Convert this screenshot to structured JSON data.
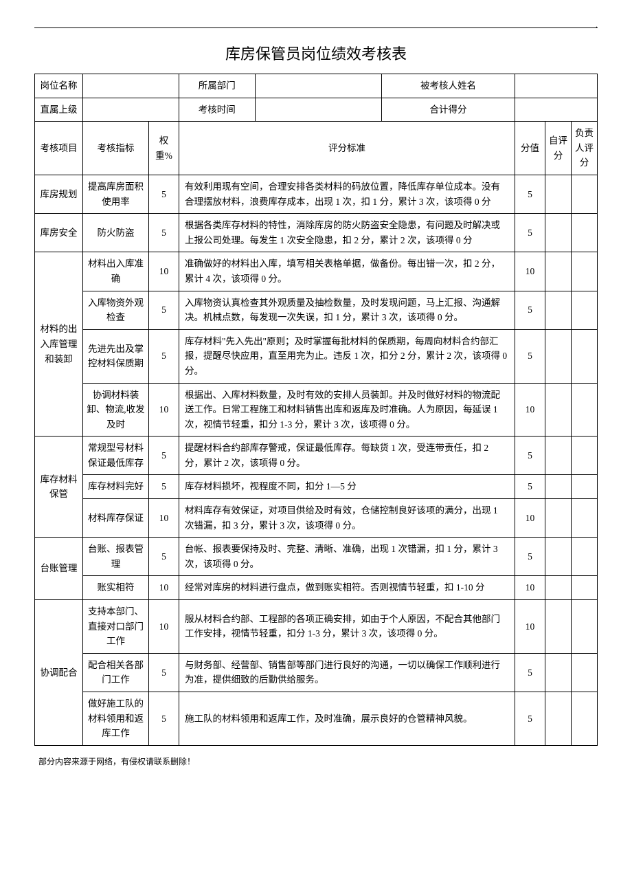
{
  "title": "库房保管员岗位绩效考核表",
  "info": {
    "labels": {
      "position": "岗位名称",
      "department": "所属部门",
      "assessee": "被考核人姓名",
      "supervisor": "直属上级",
      "period": "考核时间",
      "total": "合计得分"
    },
    "values": {
      "position": "",
      "department": "",
      "assessee": "",
      "supervisor": "",
      "period": "",
      "total": ""
    }
  },
  "headers": {
    "category": "考核项目",
    "indicator": "考核指标",
    "weight": "权重%",
    "criteria": "评分标准",
    "score": "分值",
    "self": "自评分",
    "manager": "负责人评分"
  },
  "rows": [
    {
      "category": "库房规划",
      "indicator": "提高库房面积使用率",
      "weight": "5",
      "criteria": "有效利用现有空间，合理安排各类材料的码放位置，降低库存单位成本。没有合理摆放材料，浪费库存成本，出现 1 次，扣 1 分，累计 3 次，该项得 0 分",
      "score": "5",
      "catspan": 1
    },
    {
      "category": "库房安全",
      "indicator": "防火防盗",
      "weight": "5",
      "criteria": "根据各类库存材料的特性，消除库房的防火防盗安全隐患，有问题及时解决或上报公司处理。每发生 1 次安全隐患，扣 2 分，累计 2 次，该项得 0 分",
      "score": "5",
      "catspan": 1
    },
    {
      "category": "材料的出入库管理和装卸",
      "indicator": "材料出入库准确",
      "weight": "10",
      "criteria": "准确做好的材料出入库，填写相关表格单据，做备份。每出错一次，扣 2 分，累计 4 次，该项得 0 分。",
      "score": "10",
      "catspan": 4
    },
    {
      "indicator": "入库物资外观检查",
      "weight": "5",
      "criteria": "入库物资认真检查其外观质量及抽检数量，及时发现问题，马上汇报、沟通解决。机械点数，每发现一次失误，扣 1 分，累计 3 次，该项得 0 分。",
      "score": "5"
    },
    {
      "indicator": "先进先出及掌控材料保质期",
      "weight": "5",
      "criteria": "库存材料\"先入先出\"原则；及时掌握每批材料的保质期，每周向材料合约部汇报，提醒尽快应用，直至用完为止。违反 1 次，扣分 2 分，累计 2 次，该项得 0 分。",
      "score": "5"
    },
    {
      "indicator": "协调材料装卸、物流,收发及时",
      "weight": "10",
      "criteria": "根据出、入库材料数量，及时有效的安排人员装卸。并及时做好材料的物流配送工作。日常工程施工和材料销售出库和返库及时准确。人为原因，每延误 1 次，视情节轻重，扣分 1-3 分，累计 3 次，该项得 0 分。",
      "score": "10"
    },
    {
      "category": "库存材料保管",
      "indicator": "常规型号材料保证最低库存",
      "weight": "5",
      "criteria": "提醒材料合约部库存警戒，保证最低库存。每缺货 1 次，受连带责任，扣 2 分，累计 2 次，该项得 0 分。",
      "score": "5",
      "catspan": 3
    },
    {
      "indicator": "库存材料完好",
      "weight": "5",
      "criteria": "库存材料损坏，视程度不同，扣分 1—5 分",
      "score": "5"
    },
    {
      "indicator": "材料库存保证",
      "weight": "10",
      "criteria": "材料库存有效保证，对项目供给及时有效，仓储控制良好该项的满分，出现 1 次错漏，扣 3 分，累计 3 次，该项得 0 分。",
      "score": "10"
    },
    {
      "category": "台账管理",
      "indicator": "台账、报表管理",
      "weight": "5",
      "criteria": "台帐、报表要保持及时、完整、清晰、准确，出现 1 次错漏，扣 1 分，累计 3 次，该项得 0 分。",
      "score": "5",
      "catspan": 2
    },
    {
      "indicator": "账实相符",
      "weight": "10",
      "criteria": "经常对库房的材料进行盘点，做到账实相符。否则视情节轻重，扣 1-10 分",
      "score": "10"
    },
    {
      "category": "协调配合",
      "indicator": "支持本部门、直接对口部门工作",
      "weight": "10",
      "criteria": "服从材料合约部、工程部的各项正确安排，如由于个人原因，不配合其他部门工作安排，视情节轻重，扣分 1-3 分，累计 3 次，该项得 0 分。",
      "score": "10",
      "catspan": 3
    },
    {
      "indicator": "配合相关各部门工作",
      "weight": "5",
      "criteria": "与财务部、经营部、销售部等部门进行良好的沟通，一切以确保工作顺利进行为准，提供细致的后勤供给服务。",
      "score": "5"
    },
    {
      "indicator": "做好施工队的材料领用和返库工作",
      "weight": "5",
      "criteria": "施工队的材料领用和返库工作，及时准确，展示良好的仓管精神风貌。",
      "score": "5"
    }
  ],
  "footer": "部分内容来源于网络，有侵权请联系删除！"
}
